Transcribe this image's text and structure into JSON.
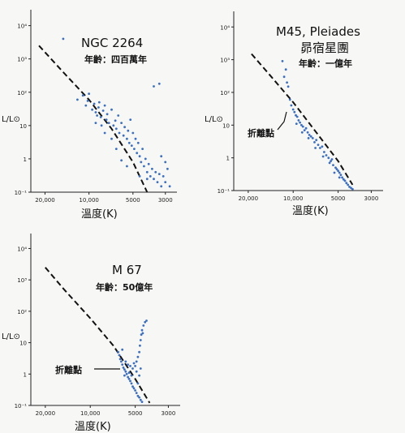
{
  "colors": {
    "points": "#3a6fc4",
    "axes": "#222222",
    "background": "#f7f7f5"
  },
  "chart_data": [
    {
      "type": "scatter",
      "title": "NGC 2264",
      "subtitle": "年齡：四百萬年",
      "xlabel": "溫度(K)",
      "ylabel": "L/L⊙",
      "x_scale": "log-reversed",
      "y_scale": "log",
      "xlim": [
        25000,
        2500
      ],
      "ylim": [
        0.1,
        30000
      ],
      "x_ticks": [
        "20,000",
        "10,000",
        "5000",
        "3000"
      ],
      "y_ticks": [
        "10⁴",
        "10³",
        "10²",
        "10",
        "1",
        "10⁻¹"
      ],
      "main_sequence": [
        [
          22000,
          2500
        ],
        [
          15000,
          400
        ],
        [
          10000,
          60
        ],
        [
          7000,
          8
        ],
        [
          5000,
          0.8
        ],
        [
          4000,
          0.1
        ]
      ],
      "annotation": "",
      "series": [
        {
          "points": [
            [
              15000,
              4000
            ],
            [
              12000,
              60
            ],
            [
              11000,
              80
            ],
            [
              10500,
              40
            ],
            [
              10200,
              55
            ],
            [
              10000,
              90
            ],
            [
              9500,
              30
            ],
            [
              9200,
              45
            ],
            [
              9000,
              25
            ],
            [
              8800,
              20
            ],
            [
              8600,
              35
            ],
            [
              8500,
              50
            ],
            [
              8300,
              18
            ],
            [
              8000,
              28
            ],
            [
              7800,
              40
            ],
            [
              7600,
              15
            ],
            [
              7500,
              22
            ],
            [
              7300,
              12
            ],
            [
              7000,
              30
            ],
            [
              6800,
              10
            ],
            [
              6600,
              14
            ],
            [
              6500,
              8
            ],
            [
              6300,
              20
            ],
            [
              6200,
              6
            ],
            [
              6000,
              12
            ],
            [
              5800,
              5
            ],
            [
              5700,
              9
            ],
            [
              5500,
              4
            ],
            [
              5400,
              7
            ],
            [
              5300,
              3
            ],
            [
              5200,
              15
            ],
            [
              5100,
              2.5
            ],
            [
              5000,
              6
            ],
            [
              4900,
              2
            ],
            [
              4800,
              4
            ],
            [
              4700,
              1.5
            ],
            [
              4600,
              3
            ],
            [
              4500,
              1.2
            ],
            [
              4400,
              0.8
            ],
            [
              4300,
              2
            ],
            [
              4200,
              0.6
            ],
            [
              4100,
              1
            ],
            [
              4000,
              0.4
            ],
            [
              3900,
              0.7
            ],
            [
              3800,
              0.3
            ],
            [
              3700,
              0.5
            ],
            [
              3600,
              0.25
            ],
            [
              3500,
              0.4
            ],
            [
              3400,
              0.2
            ],
            [
              3300,
              0.35
            ],
            [
              3200,
              0.15
            ],
            [
              3100,
              0.3
            ],
            [
              3000,
              0.2
            ],
            [
              2900,
              0.5
            ],
            [
              2800,
              0.15
            ],
            [
              3600,
              150
            ],
            [
              3300,
              180
            ],
            [
              3000,
              0.8
            ],
            [
              3200,
              1.2
            ],
            [
              4000,
              0.25
            ],
            [
              4500,
              0.3
            ],
            [
              5500,
              0.6
            ],
            [
              6000,
              0.9
            ],
            [
              6500,
              2
            ],
            [
              7000,
              4
            ],
            [
              7800,
              6
            ],
            [
              8200,
              10
            ],
            [
              9000,
              12
            ]
          ]
        }
      ]
    },
    {
      "type": "scatter",
      "title": "M45, Pleiades",
      "subtitle": "昴宿星團",
      "subtitle2": "年齡：一億年",
      "xlabel": "溫度(K)",
      "ylabel": "L/L⊙",
      "x_scale": "log-reversed",
      "y_scale": "log",
      "xlim": [
        25000,
        2500
      ],
      "ylim": [
        0.1,
        30000
      ],
      "x_ticks": [
        "20,000",
        "10,000",
        "5000",
        "3000"
      ],
      "y_ticks": [
        "10⁴",
        "10³",
        "10²",
        "10",
        "1",
        "10⁻¹"
      ],
      "main_sequence": [
        [
          19000,
          1500
        ],
        [
          14000,
          300
        ],
        [
          10000,
          50
        ],
        [
          7000,
          6
        ],
        [
          5000,
          0.8
        ],
        [
          4000,
          0.15
        ]
      ],
      "annotation": "折離點",
      "series": [
        {
          "points": [
            [
              11800,
              900
            ],
            [
              11500,
              300
            ],
            [
              11200,
              500
            ],
            [
              11000,
              200
            ],
            [
              10800,
              150
            ],
            [
              10500,
              60
            ],
            [
              10300,
              40
            ],
            [
              10000,
              30
            ],
            [
              9800,
              25
            ],
            [
              9600,
              20
            ],
            [
              9400,
              18
            ],
            [
              9200,
              14
            ],
            [
              9000,
              12
            ],
            [
              8800,
              10
            ],
            [
              8600,
              9
            ],
            [
              8400,
              7
            ],
            [
              8200,
              8
            ],
            [
              8000,
              6
            ],
            [
              7800,
              5
            ],
            [
              7600,
              4.5
            ],
            [
              7400,
              4
            ],
            [
              7200,
              3
            ],
            [
              7000,
              3.5
            ],
            [
              6800,
              2.5
            ],
            [
              6600,
              2
            ],
            [
              6400,
              2.2
            ],
            [
              6200,
              1.5
            ],
            [
              6000,
              1.2
            ],
            [
              5800,
              1
            ],
            [
              5600,
              0.8
            ],
            [
              5500,
              0.9
            ],
            [
              5400,
              0.6
            ],
            [
              5200,
              0.5
            ],
            [
              5100,
              0.45
            ],
            [
              5000,
              0.4
            ],
            [
              4900,
              0.35
            ],
            [
              4800,
              0.3
            ],
            [
              4700,
              0.25
            ],
            [
              4600,
              0.22
            ],
            [
              4500,
              0.2
            ],
            [
              4400,
              0.17
            ],
            [
              4300,
              0.15
            ],
            [
              4200,
              0.13
            ],
            [
              4100,
              0.12
            ],
            [
              4000,
              0.11
            ],
            [
              9500,
              11
            ],
            [
              8700,
              6
            ],
            [
              7900,
              4
            ],
            [
              7100,
              2
            ],
            [
              6300,
              1.1
            ],
            [
              5700,
              0.7
            ],
            [
              5300,
              0.35
            ],
            [
              4900,
              0.25
            ]
          ]
        }
      ]
    },
    {
      "type": "scatter",
      "title": "M 67",
      "subtitle": "年齡：50億年",
      "xlabel": "溫度(K)",
      "ylabel": "L/L⊙",
      "x_scale": "log-reversed",
      "y_scale": "log",
      "xlim": [
        25000,
        2500
      ],
      "ylim": [
        0.1,
        30000
      ],
      "x_ticks": [
        "20,000",
        "10,000",
        "5000",
        "3000"
      ],
      "y_ticks": [
        "10⁴",
        "10³",
        "10²",
        "10",
        "1",
        "10⁻¹"
      ],
      "main_sequence": [
        [
          20000,
          2500
        ],
        [
          15000,
          500
        ],
        [
          10000,
          60
        ],
        [
          7000,
          8
        ],
        [
          5000,
          0.7
        ],
        [
          4000,
          0.12
        ]
      ],
      "annotation": "折離點",
      "series": [
        {
          "points": [
            [
              6400,
              4
            ],
            [
              6300,
              3
            ],
            [
              6200,
              2.5
            ],
            [
              6100,
              2
            ],
            [
              6000,
              1.6
            ],
            [
              5900,
              1.4
            ],
            [
              5800,
              1.2
            ],
            [
              5700,
              1
            ],
            [
              5600,
              0.8
            ],
            [
              5500,
              0.7
            ],
            [
              5400,
              0.6
            ],
            [
              5300,
              0.5
            ],
            [
              5200,
              0.4
            ],
            [
              5100,
              0.35
            ],
            [
              5000,
              0.3
            ],
            [
              4900,
              0.25
            ],
            [
              4800,
              0.2
            ],
            [
              4700,
              0.18
            ],
            [
              4600,
              0.15
            ],
            [
              4500,
              0.13
            ],
            [
              5800,
              2.5
            ],
            [
              5600,
              2
            ],
            [
              5400,
              1.8
            ],
            [
              5200,
              1.5
            ],
            [
              5000,
              1.8
            ],
            [
              4900,
              2.5
            ],
            [
              4800,
              3.5
            ],
            [
              4700,
              5
            ],
            [
              4650,
              8
            ],
            [
              4600,
              12
            ],
            [
              4550,
              18
            ],
            [
              4500,
              25
            ],
            [
              4450,
              20
            ],
            [
              4400,
              35
            ],
            [
              4300,
              45
            ],
            [
              4200,
              50
            ],
            [
              4700,
              0.9
            ],
            [
              4900,
              1.2
            ],
            [
              5100,
              2.2
            ],
            [
              6100,
              6
            ],
            [
              6500,
              5
            ],
            [
              5300,
              0.9
            ],
            [
              5500,
              1.1
            ],
            [
              5900,
              0.9
            ],
            [
              4600,
              1.5
            ],
            [
              4800,
              0.5
            ]
          ]
        }
      ]
    }
  ]
}
